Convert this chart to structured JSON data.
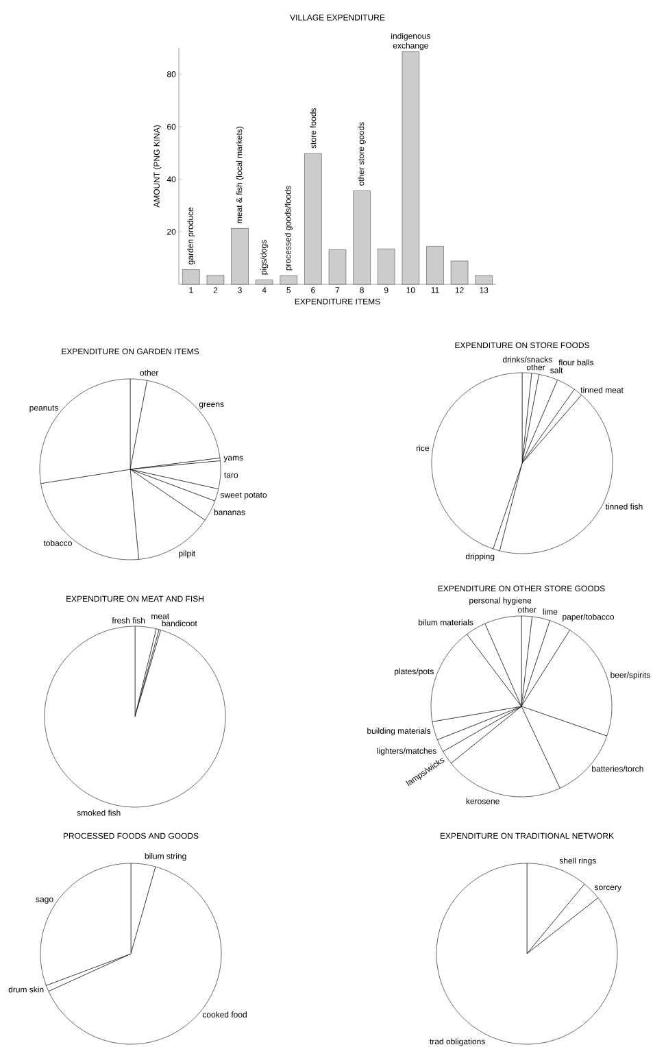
{
  "chart_data": [
    {
      "type": "bar",
      "title": "VILLAGE EXPENDITURE",
      "xlabel": "EXPENDITURE ITEMS",
      "ylabel": "AMOUNT (PNG KINA)",
      "categories": [
        "1",
        "2",
        "3",
        "4",
        "5",
        "6",
        "7",
        "8",
        "9",
        "10",
        "11",
        "12",
        "13"
      ],
      "values": [
        5.6,
        3.4,
        21.3,
        1.7,
        3.3,
        49.8,
        13.2,
        35.6,
        13.5,
        88.6,
        14.5,
        8.9,
        3.3
      ],
      "color": "#cccccc",
      "ylim": [
        0,
        90
      ],
      "yticks": [
        20,
        40,
        60,
        80
      ],
      "annotations": [
        {
          "text": "garden produce",
          "x": "1",
          "y": 5.6
        },
        {
          "text": "meat & fish (local markets)",
          "x": "3",
          "y": 21.3
        },
        {
          "text": "pigs/dogs",
          "x": "4",
          "y": 1.7
        },
        {
          "text": "processed goods/foods",
          "x": "5",
          "y": 3.3
        },
        {
          "text": "store foods",
          "x": "6",
          "y": 49.8
        },
        {
          "text": "other store goods",
          "x": "8",
          "y": 35.6
        },
        {
          "text": "indigenous exchange",
          "x": "10",
          "y": 88.6
        }
      ]
    },
    {
      "type": "pie",
      "title": "EXPENDITURE ON GARDEN ITEMS",
      "categories": [
        "other",
        "greens",
        "yams",
        "taro",
        "sweet potato",
        "bananas",
        "pilpit",
        "tobacco",
        "peanuts"
      ],
      "values": [
        3,
        20,
        0.5,
        5,
        2.2,
        3.8,
        14,
        24,
        27.5
      ],
      "colors": [
        "#ffffff",
        "#ffffff",
        "#ffffff",
        "#ffffff",
        "#ffffff",
        "#ffffff",
        "#ffffff",
        "#ffffff",
        "#ffffff"
      ]
    },
    {
      "type": "pie",
      "title": "EXPENDITURE ON STORE FOODS",
      "categories": [
        "drinks/snacks",
        "other",
        "salt",
        "flour balls",
        "tinned meat",
        "tinned fish",
        "dripping",
        "rice"
      ],
      "values": [
        1.7,
        1.3,
        3.4,
        3.4,
        1.6,
        42.6,
        1.2,
        44.8
      ],
      "colors": [
        "#ffffff",
        "#ffffff",
        "#ffffff",
        "#ffffff",
        "#ffffff",
        "#ffffff",
        "#ffffff",
        "#ffffff"
      ]
    },
    {
      "type": "pie",
      "title": "EXPENDITURE ON MEAT AND FISH",
      "categories": [
        "fresh fish",
        "meat",
        "bandicoot",
        "smoked fish"
      ],
      "values": [
        3.8,
        0.5,
        0.3,
        95.4
      ],
      "colors": [
        "#ffffff",
        "#ffffff",
        "#ffffff",
        "#ffffff"
      ]
    },
    {
      "type": "pie",
      "title": "EXPENDITURE ON OTHER STORE GOODS",
      "categories": [
        "other",
        "lime",
        "paper/tobacco",
        "beer/spirits",
        "batteries/torch",
        "kerosene",
        "lamps/wicks",
        "lighters/matches",
        "building materials",
        "plates/pots",
        "bilum materials",
        "personal hygiene"
      ],
      "values": [
        1.9,
        3.2,
        3.9,
        21.3,
        12.7,
        21.2,
        2.5,
        2.3,
        3.3,
        17.4,
        3.7,
        6.6
      ],
      "colors": [
        "#ffffff",
        "#ffffff",
        "#ffffff",
        "#ffffff",
        "#ffffff",
        "#ffffff",
        "#ffffff",
        "#ffffff",
        "#ffffff",
        "#ffffff",
        "#ffffff",
        "#ffffff"
      ]
    },
    {
      "type": "pie",
      "title": "PROCESSED FOODS AND GOODS",
      "categories": [
        "bilum string",
        "cooked food",
        "drum skin",
        "sago"
      ],
      "values": [
        4.4,
        63.8,
        1.1,
        30.7
      ],
      "colors": [
        "#ffffff",
        "#ffffff",
        "#ffffff",
        "#ffffff"
      ]
    },
    {
      "type": "pie",
      "title": "EXPENDITURE ON TRADITIONAL NETWORK",
      "categories": [
        "shell rings",
        "sorcery",
        "trad obligations"
      ],
      "values": [
        11,
        3.4,
        85.6
      ],
      "colors": [
        "#ffffff",
        "#ffffff",
        "#ffffff"
      ]
    }
  ]
}
